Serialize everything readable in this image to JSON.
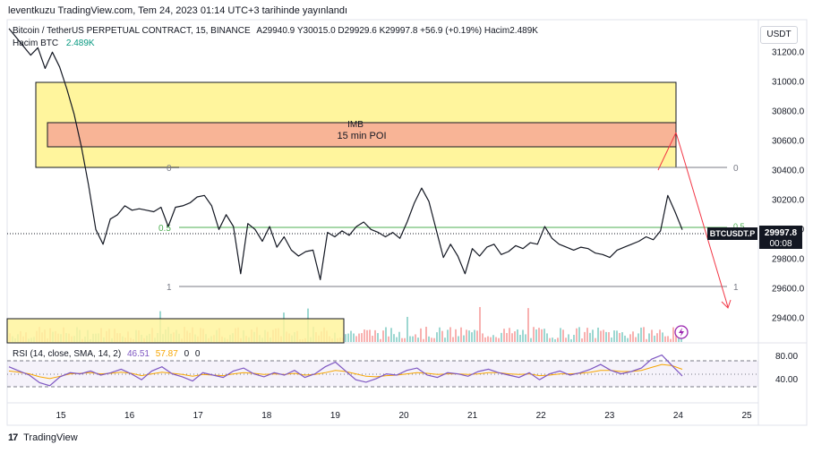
{
  "publisher_line": "leventkuzu TradingView.com, Tem 24, 2023 01:14 UTC+3 tarihinde yayınlandı",
  "legend": {
    "instrument": "Bitcoin / TetherUS PERPETUAL CONTRACT, 15, BINANCE",
    "ohlc": "A29940.9  Y30015.0  D29929.6  K29997.8  +56.9 (+0.19%)  Hacim2.489K",
    "volume_label": "Hacim  BTC",
    "volume_value": "2.489K"
  },
  "rsi_legend": {
    "label": "RSI (14, close, SMA, 14, 2)",
    "rsi_value": "46.51",
    "sma_value": "57.87",
    "extra1": "0",
    "extra2": "0"
  },
  "currency_button": "USDT",
  "footer": {
    "logo_mark": "17",
    "brand": "TradingView"
  },
  "colors": {
    "price_line": "#131722",
    "zone_yellow": "#fff59d",
    "zone_salmon": "#f8b496",
    "fib_mid": "#4caf50",
    "arrow": "#f23645",
    "rsi": "#7e57c2",
    "rsi_sma": "#f7a600",
    "volume_up": "#26a69a",
    "volume_down": "#ef5350"
  },
  "annotations": {
    "imb": "IMB",
    "poi": "15 min POI",
    "fib_0": "0",
    "fib_05": "0.5",
    "fib_1": "1",
    "fib_0_right": "0",
    "fib_05_right": "0.5",
    "fib_1_right": "1"
  },
  "price_tag": {
    "symbol": "BTCUSDT.P",
    "price": "29997.8",
    "countdown": "00:08"
  },
  "chart_data": {
    "type": "line",
    "x_ticks": [
      "15",
      "16",
      "17",
      "18",
      "19",
      "20",
      "21",
      "22",
      "23",
      "24",
      "25"
    ],
    "y_ticks": [
      "31200.0",
      "31000.0",
      "30800.0",
      "30600.0",
      "30400.0",
      "30200.0",
      "30000.0",
      "29800.0",
      "29600.0",
      "29400.0"
    ],
    "ylim": [
      29250,
      31420
    ],
    "series": [
      {
        "values": [
          31360,
          31300,
          31240,
          31180,
          31230,
          31090,
          31200,
          31100,
          30950,
          30780,
          30560,
          30300,
          30000,
          29900,
          30070,
          30100,
          30160,
          30130,
          30140,
          30130,
          30120,
          30150,
          30020,
          30150,
          30160,
          30180,
          30220,
          30230,
          30160,
          30000,
          30100,
          30020,
          29700,
          30040,
          30000,
          29920,
          30020,
          29880,
          29950,
          29860,
          29820,
          29850,
          29860,
          29660,
          29980,
          29950,
          29990,
          29960,
          30020,
          30050,
          30000,
          29980,
          29950,
          29980,
          29940,
          30050,
          30180,
          30280,
          30190,
          30000,
          29810,
          29900,
          29820,
          29700,
          29870,
          29820,
          29880,
          29900,
          29830,
          29850,
          29890,
          29870,
          29910,
          29900,
          30020,
          29940,
          29900,
          29880,
          29860,
          29880,
          29870,
          29840,
          29830,
          29810,
          29860,
          29880,
          29900,
          29920,
          29950,
          29930,
          29990,
          30230,
          30120,
          29997.8
        ]
      },
      {
        "name": "RSI",
        "values": [
          62,
          55,
          48,
          35,
          30,
          45,
          52,
          50,
          55,
          48,
          52,
          58,
          50,
          40,
          55,
          62,
          50,
          45,
          38,
          52,
          48,
          44,
          55,
          60,
          50,
          45,
          52,
          48,
          56,
          44,
          50,
          62,
          70,
          55,
          40,
          36,
          42,
          50,
          48,
          56,
          60,
          48,
          44,
          52,
          50,
          46,
          54,
          58,
          52,
          48,
          44,
          52,
          40,
          50,
          55,
          48,
          52,
          58,
          66,
          56,
          50,
          54,
          60,
          75,
          82,
          64,
          46.51
        ]
      },
      {
        "name": "RSI SMA",
        "values": [
          55,
          53,
          50,
          45,
          42,
          46,
          50,
          51,
          52,
          50,
          51,
          53,
          51,
          47,
          50,
          53,
          51,
          49,
          46,
          49,
          48,
          47,
          50,
          52,
          51,
          49,
          50,
          49,
          51,
          48,
          49,
          52,
          56,
          54,
          50,
          46,
          45,
          47,
          48,
          50,
          52,
          51,
          49,
          50,
          50,
          49,
          50,
          52,
          52,
          50,
          49,
          50,
          47,
          48,
          50,
          50,
          51,
          53,
          56,
          56,
          54,
          54,
          56,
          61,
          66,
          64,
          57.87
        ]
      }
    ],
    "fib_levels": [
      {
        "label": "0",
        "price": 30440
      },
      {
        "label": "0.5",
        "price": 30030
      },
      {
        "label": "1",
        "price": 29620
      }
    ],
    "last_price": 29997.8,
    "rsi_ticks": [
      "80.00",
      "40.00"
    ],
    "rsi_levels": [
      70,
      50,
      30
    ],
    "rsi_ylim": [
      10,
      95
    ],
    "grid": false
  }
}
